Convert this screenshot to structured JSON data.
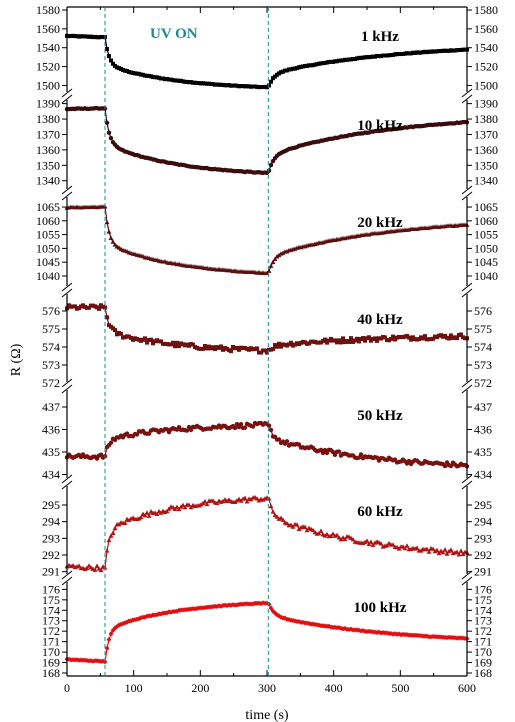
{
  "chart_data": {
    "type": "line",
    "xlabel": "time (s)",
    "ylabel": "R (Ω)",
    "xlim": [
      0,
      600
    ],
    "x_ticks": [
      0,
      100,
      200,
      300,
      400,
      500,
      600
    ],
    "annotation": "UV ON",
    "uv_on_time": 57,
    "uv_off_time": 302,
    "annotation_color": "#1a8a94",
    "panels": [
      {
        "label": "1 kHz",
        "color": "#000000",
        "marker": "square",
        "ylim": [
          1492,
          1580
        ],
        "y_ticks": [
          1500,
          1520,
          1540,
          1560,
          1580
        ],
        "initial": 1552.5,
        "dark_level": 1551,
        "uv_end": 1498,
        "recovered": 1538
      },
      {
        "label": "10 kHz",
        "color": "#3a0d0d",
        "marker": "circle",
        "ylim": [
          1334,
          1393
        ],
        "y_ticks": [
          1340,
          1350,
          1360,
          1370,
          1380,
          1390
        ],
        "initial": 1386.5,
        "dark_level": 1387,
        "uv_end": 1345,
        "recovered": 1378
      },
      {
        "label": "20 kHz",
        "color": "#5a0f0f",
        "marker": "triangle",
        "ylim": [
          1036,
          1069
        ],
        "y_ticks": [
          1040,
          1045,
          1050,
          1055,
          1060,
          1065
        ],
        "initial": 1064.8,
        "dark_level": 1065,
        "uv_end": 1041,
        "recovered": 1058.5
      },
      {
        "label": "40 kHz",
        "color": "#6e1010",
        "marker": "square",
        "ylim": [
          572,
          577
        ],
        "y_ticks": [
          572,
          573,
          574,
          575,
          576
        ],
        "initial": 576.2,
        "dark_level": 576.2,
        "uv_end": 573.8,
        "recovered": 574.6
      },
      {
        "label": "50 kHz",
        "color": "#7a1111",
        "marker": "circle",
        "ylim": [
          433.8,
          437.8
        ],
        "y_ticks": [
          434,
          435,
          436,
          437
        ],
        "initial": 434.8,
        "dark_level": 434.8,
        "uv_end": 436.2,
        "recovered": 434.4
      },
      {
        "label": "60 kHz",
        "color": "#b01313",
        "marker": "triangle",
        "ylim": [
          290.8,
          296.2
        ],
        "y_ticks": [
          291,
          292,
          293,
          294,
          295
        ],
        "initial": 291.3,
        "dark_level": 291.2,
        "uv_end": 295.4,
        "recovered": 292.1
      },
      {
        "label": "100 kHz",
        "color": "#e01010",
        "marker": "diamond",
        "ylim": [
          168,
          176.8
        ],
        "y_ticks": [
          168,
          169,
          170,
          171,
          172,
          173,
          174,
          175,
          176
        ],
        "initial": 169.3,
        "dark_level": 169.1,
        "uv_end": 174.7,
        "recovered": 171.3
      }
    ]
  }
}
